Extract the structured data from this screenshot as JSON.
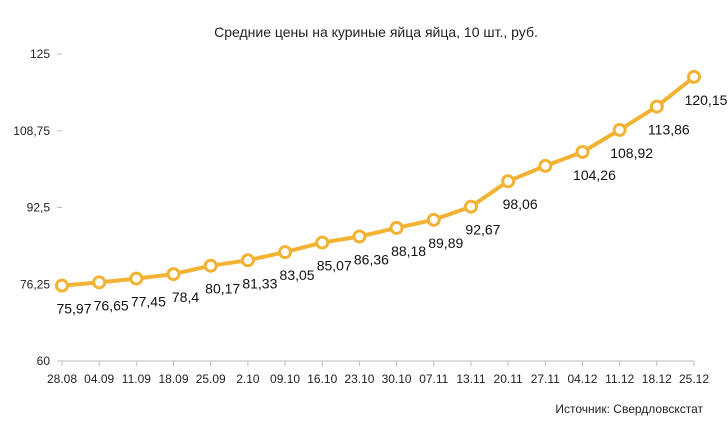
{
  "chart_data": {
    "type": "line",
    "title": "Средние цены на куриные яйца яйца, 10 шт., руб.",
    "source": "Источник: Свердловскстат",
    "xlabel": "",
    "ylabel": "",
    "ylim": [
      60,
      125
    ],
    "yticks": [
      "125",
      "108,75",
      "92,5",
      "76,25",
      "60"
    ],
    "ytick_values": [
      125,
      108.75,
      92.5,
      76.25,
      60
    ],
    "grid": false,
    "categories": [
      "28.08",
      "04.09",
      "11.09",
      "18.09",
      "25.09",
      "2.10",
      "09.10",
      "16.10",
      "23.10",
      "30.10",
      "07.11",
      "13.11",
      "20.11",
      "27.11",
      "04.12",
      "11.12",
      "18.12",
      "25.12"
    ],
    "series": [
      {
        "values": [
          75.97,
          76.65,
          77.45,
          78.4,
          80.17,
          81.33,
          83.05,
          85.07,
          86.36,
          88.18,
          89.89,
          92.67,
          98.06,
          101.3,
          104.26,
          108.92,
          113.86,
          120.15
        ],
        "labels": [
          "75,97",
          "76,65",
          "77,45",
          "78,4",
          "80,17",
          "81,33",
          "83,05",
          "85,07",
          "86,36",
          "88,18",
          "89,89",
          "92,67",
          "98,06",
          "",
          "104,26",
          "108,92",
          "113,86",
          "120,15"
        ],
        "color": "#F2B233"
      }
    ]
  }
}
